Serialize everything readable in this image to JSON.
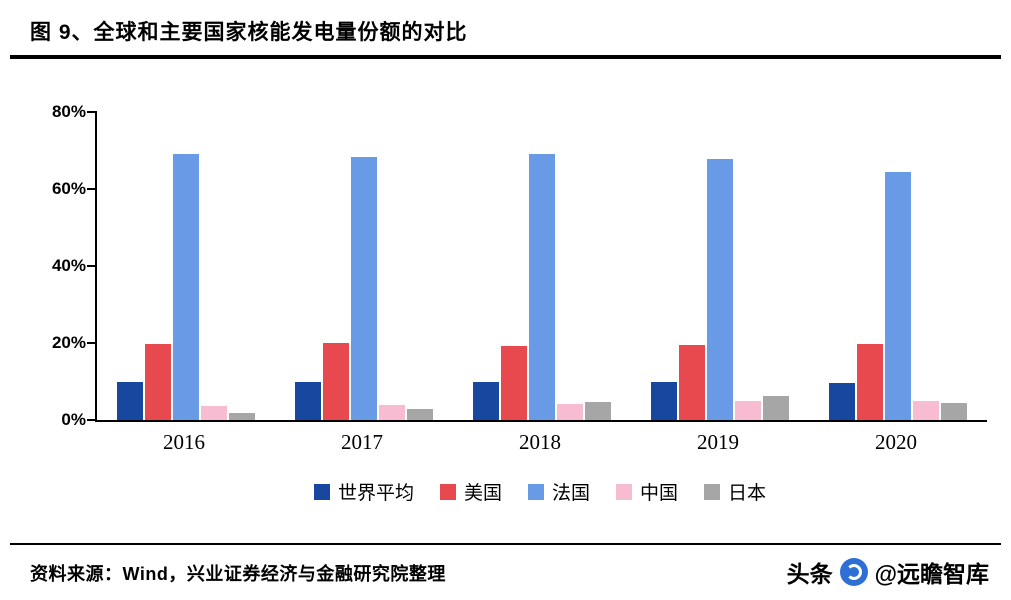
{
  "header": {
    "title": "图 9、全球和主要国家核能发电量份额的对比"
  },
  "footer": {
    "source": "资料来源：Wind，兴业证券经济与金融研究院整理",
    "watermark_left": "头条",
    "watermark_right": "@远瞻智库"
  },
  "chart_data": {
    "type": "bar",
    "title": "图 9、全球和主要国家核能发电量份额的对比",
    "categories": [
      "2016",
      "2017",
      "2018",
      "2019",
      "2020"
    ],
    "series": [
      {
        "name": "世界平均",
        "color": "#17479e",
        "values": [
          10.0,
          10.0,
          9.8,
          10.0,
          9.6
        ]
      },
      {
        "name": "美国",
        "color": "#e8494f",
        "values": [
          19.7,
          20.0,
          19.3,
          19.6,
          19.7
        ]
      },
      {
        "name": "法国",
        "color": "#699ae5",
        "values": [
          69.1,
          68.4,
          69.0,
          67.9,
          64.5
        ]
      },
      {
        "name": "中国",
        "color": "#f8bcd2",
        "values": [
          3.6,
          3.9,
          4.2,
          4.9,
          4.9
        ]
      },
      {
        "name": "日本",
        "color": "#a6a6a6",
        "values": [
          1.7,
          2.8,
          4.7,
          6.3,
          4.3
        ]
      }
    ],
    "xlabel": "",
    "ylabel": "",
    "ylim": [
      0,
      80
    ],
    "yticks": [
      "0%",
      "20%",
      "40%",
      "60%",
      "80%"
    ],
    "grid": false,
    "legend_position": "bottom"
  }
}
